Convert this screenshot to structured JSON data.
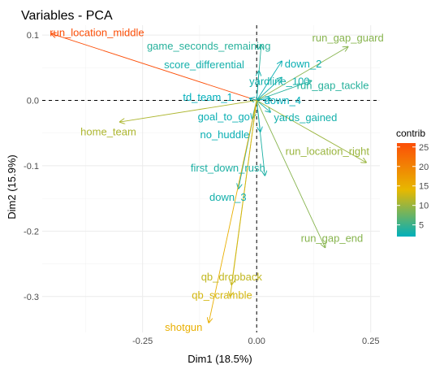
{
  "chart_data": {
    "type": "scatter",
    "title": "Variables - PCA",
    "xlabel": "Dim1 (18.5%)",
    "ylabel": "Dim2 (15.9%)",
    "xlim": [
      -0.47,
      0.27
    ],
    "ylim": [
      -0.355,
      0.115
    ],
    "x_ticks": [
      -0.25,
      0.0,
      0.25
    ],
    "x_tick_labels": [
      "-0.25",
      "0.00",
      "0.25"
    ],
    "y_ticks": [
      0.1,
      0.0,
      -0.1,
      -0.2,
      -0.3
    ],
    "y_tick_labels": [
      "0.1",
      "0.0",
      "-0.1",
      "-0.2",
      "-0.3"
    ],
    "grid": true,
    "reference_lines": {
      "x": 0.0,
      "y": 0.0,
      "style": "dashed"
    },
    "color_scale": {
      "title": "contrib",
      "min": 2,
      "max": 26,
      "stops": [
        "#00AFBB",
        "#E7B800",
        "#FC4E07"
      ],
      "ticks": [
        5,
        10,
        15,
        20,
        25
      ],
      "tick_labels": [
        "5",
        "10",
        "15",
        "20",
        "25"
      ]
    },
    "variables": [
      {
        "name": "run_location_middle",
        "x": -0.45,
        "y": 0.102,
        "contrib": 26,
        "lx": -0.35,
        "ly": 0.104
      },
      {
        "name": "game_seconds_remaining",
        "x": 0.01,
        "y": 0.085,
        "contrib": 4,
        "lx": -0.105,
        "ly": 0.083
      },
      {
        "name": "run_gap_guard",
        "x": 0.2,
        "y": 0.082,
        "contrib": 9,
        "lx": 0.2,
        "ly": 0.096
      },
      {
        "name": "down_2",
        "x": 0.055,
        "y": 0.06,
        "contrib": 2.5,
        "lx": 0.102,
        "ly": 0.056
      },
      {
        "name": "score_differential",
        "x": 0.005,
        "y": 0.045,
        "contrib": 3,
        "lx": -0.115,
        "ly": 0.055
      },
      {
        "name": "yardline_100",
        "x": 0.055,
        "y": 0.035,
        "contrib": 3,
        "lx": 0.05,
        "ly": 0.029
      },
      {
        "name": "run_gap_tackle",
        "x": 0.12,
        "y": 0.03,
        "contrib": 4,
        "lx": 0.167,
        "ly": 0.023
      },
      {
        "name": "td_team_1",
        "x": -0.015,
        "y": 0.003,
        "contrib": 2,
        "lx": -0.107,
        "ly": 0.005
      },
      {
        "name": "down_4",
        "x": 0.03,
        "y": 0.003,
        "contrib": 2,
        "lx": 0.057,
        "ly": 0.0
      },
      {
        "name": "home_team",
        "x": -0.3,
        "y": -0.033,
        "contrib": 11,
        "lx": -0.325,
        "ly": -0.048
      },
      {
        "name": "goal_to_go",
        "x": -0.01,
        "y": -0.028,
        "contrib": 2.5,
        "lx": -0.072,
        "ly": -0.025
      },
      {
        "name": "yards_gained",
        "x": 0.03,
        "y": -0.018,
        "contrib": 3,
        "lx": 0.107,
        "ly": -0.026
      },
      {
        "name": "no_huddle",
        "x": 0.008,
        "y": -0.048,
        "contrib": 2.5,
        "lx": -0.07,
        "ly": -0.052
      },
      {
        "name": "run_location_right",
        "x": 0.24,
        "y": -0.095,
        "contrib": 10,
        "lx": 0.155,
        "ly": -0.078
      },
      {
        "name": "first_down_rush",
        "x": 0.018,
        "y": -0.115,
        "contrib": 3.5,
        "lx": -0.063,
        "ly": -0.103
      },
      {
        "name": "down_3",
        "x": -0.04,
        "y": -0.135,
        "contrib": 3,
        "lx": -0.063,
        "ly": -0.148
      },
      {
        "name": "run_gap_end",
        "x": 0.15,
        "y": -0.225,
        "contrib": 9,
        "lx": 0.165,
        "ly": -0.211
      },
      {
        "name": "qb_dropback",
        "x": -0.055,
        "y": -0.282,
        "contrib": 12,
        "lx": -0.055,
        "ly": -0.27
      },
      {
        "name": "qb_scramble",
        "x": -0.058,
        "y": -0.3,
        "contrib": 13,
        "lx": -0.076,
        "ly": -0.298
      },
      {
        "name": "shotgun",
        "x": -0.105,
        "y": -0.34,
        "contrib": 15,
        "lx": -0.16,
        "ly": -0.347
      }
    ]
  }
}
